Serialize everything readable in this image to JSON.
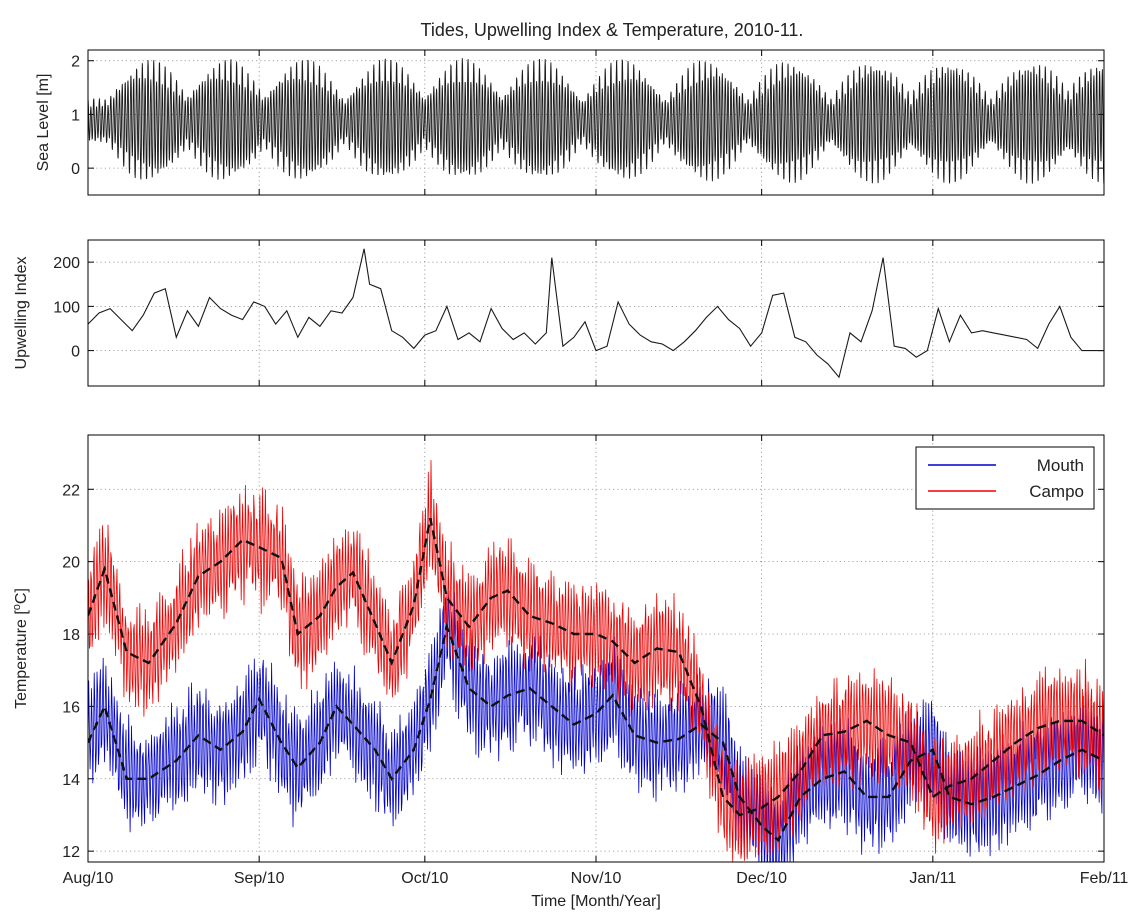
{
  "chart_data": [
    {
      "type": "line",
      "title": "Tides, Upwelling Index & Temperature, 2010-11.",
      "ylabel": "Sea Level [m]",
      "xlim": [
        "2010-08-01",
        "2011-02-01"
      ],
      "ylim": [
        -0.5,
        2.2
      ],
      "yticks": [
        0,
        1,
        2
      ],
      "grid": true,
      "series": [
        {
          "color": "#1a1a1a",
          "description": "hourly mixed semidiurnal tide, mean ~0.9 m, spring-neap envelope",
          "spring_tide_dates": [
            "2010-08-12",
            "2010-08-26",
            "2010-09-09",
            "2010-09-24",
            "2010-10-08",
            "2010-10-22",
            "2010-11-06",
            "2010-11-21",
            "2010-12-06",
            "2010-12-21",
            "2011-01-04",
            "2011-01-19",
            "2011-02-01"
          ],
          "spring_range": [
            -0.3,
            2.05
          ],
          "neap_range": [
            0.5,
            1.35
          ]
        }
      ]
    },
    {
      "type": "line",
      "ylabel": "Upwelling Index",
      "xlim": [
        "2010-08-01",
        "2011-02-01"
      ],
      "ylim": [
        -80,
        250
      ],
      "yticks": [
        0,
        100,
        200
      ],
      "grid": true,
      "series": [
        {
          "color": "#1a1a1a",
          "x": [
            "2010-08-01",
            "2010-08-03",
            "2010-08-05",
            "2010-08-07",
            "2010-08-09",
            "2010-08-11",
            "2010-08-13",
            "2010-08-15",
            "2010-08-17",
            "2010-08-19",
            "2010-08-21",
            "2010-08-23",
            "2010-08-25",
            "2010-08-27",
            "2010-08-29",
            "2010-08-31",
            "2010-09-02",
            "2010-09-04",
            "2010-09-06",
            "2010-09-08",
            "2010-09-10",
            "2010-09-12",
            "2010-09-14",
            "2010-09-16",
            "2010-09-18",
            "2010-09-20",
            "2010-09-21",
            "2010-09-23",
            "2010-09-25",
            "2010-09-27",
            "2010-09-29",
            "2010-10-01",
            "2010-10-03",
            "2010-10-05",
            "2010-10-07",
            "2010-10-09",
            "2010-10-11",
            "2010-10-13",
            "2010-10-15",
            "2010-10-17",
            "2010-10-19",
            "2010-10-21",
            "2010-10-23",
            "2010-10-24",
            "2010-10-26",
            "2010-10-28",
            "2010-10-30",
            "2010-11-01",
            "2010-11-03",
            "2010-11-05",
            "2010-11-07",
            "2010-11-09",
            "2010-11-11",
            "2010-11-13",
            "2010-11-15",
            "2010-11-17",
            "2010-11-19",
            "2010-11-21",
            "2010-11-23",
            "2010-11-25",
            "2010-11-27",
            "2010-11-29",
            "2010-12-01",
            "2010-12-03",
            "2010-12-05",
            "2010-12-07",
            "2010-12-09",
            "2010-12-11",
            "2010-12-13",
            "2010-12-15",
            "2010-12-17",
            "2010-12-19",
            "2010-12-21",
            "2010-12-23",
            "2010-12-25",
            "2010-12-27",
            "2010-12-29",
            "2010-12-31",
            "2011-01-02",
            "2011-01-04",
            "2011-01-06",
            "2011-01-08",
            "2011-01-10",
            "2011-01-12",
            "2011-01-14",
            "2011-01-16",
            "2011-01-18",
            "2011-01-20",
            "2011-01-22",
            "2011-01-24",
            "2011-01-26",
            "2011-01-28",
            "2011-01-30",
            "2011-02-01"
          ],
          "values": [
            60,
            85,
            95,
            70,
            45,
            80,
            130,
            140,
            30,
            90,
            55,
            120,
            95,
            80,
            70,
            110,
            100,
            60,
            90,
            30,
            75,
            55,
            90,
            85,
            120,
            230,
            150,
            140,
            45,
            30,
            5,
            35,
            45,
            100,
            25,
            40,
            20,
            95,
            50,
            25,
            40,
            15,
            40,
            210,
            10,
            30,
            65,
            0,
            10,
            110,
            60,
            35,
            20,
            15,
            0,
            20,
            45,
            75,
            100,
            70,
            50,
            10,
            40,
            125,
            130,
            30,
            20,
            -10,
            -30,
            -60,
            40,
            20,
            90,
            210,
            10,
            5,
            -15,
            0,
            95,
            20,
            80,
            40,
            45,
            40,
            35,
            30,
            25,
            5,
            60,
            100,
            30,
            0,
            0,
            0
          ],
          "peaks": [
            {
              "x": "2010-09-20",
              "y": 230
            },
            {
              "x": "2010-10-24",
              "y": 210
            },
            {
              "x": "2010-12-23",
              "y": 210
            }
          ]
        }
      ]
    },
    {
      "type": "line",
      "xlabel": "Time [Month/Year]",
      "ylabel": "Temperature [oC]",
      "xlim": [
        "2010-08-01",
        "2011-02-01"
      ],
      "ylim": [
        11.7,
        23.5
      ],
      "yticks": [
        12,
        14,
        16,
        18,
        20,
        22
      ],
      "xticks": [
        "Aug/10",
        "Sep/10",
        "Oct/10",
        "Nov/10",
        "Dec/10",
        "Jan/11",
        "Feb/11"
      ],
      "grid": true,
      "legend": "top-right",
      "series": [
        {
          "name": "Mouth",
          "color": "#0000cc",
          "smoothed_color": "#111111",
          "x": [
            "2010-08-01",
            "2010-08-04",
            "2010-08-08",
            "2010-08-12",
            "2010-08-17",
            "2010-08-21",
            "2010-08-25",
            "2010-08-29",
            "2010-09-01",
            "2010-09-05",
            "2010-09-08",
            "2010-09-12",
            "2010-09-15",
            "2010-09-18",
            "2010-09-22",
            "2010-09-25",
            "2010-09-29",
            "2010-10-02",
            "2010-10-05",
            "2010-10-09",
            "2010-10-13",
            "2010-10-16",
            "2010-10-20",
            "2010-10-24",
            "2010-10-28",
            "2010-11-01",
            "2010-11-04",
            "2010-11-08",
            "2010-11-12",
            "2010-11-16",
            "2010-11-20",
            "2010-11-24",
            "2010-11-27",
            "2010-12-01",
            "2010-12-04",
            "2010-12-08",
            "2010-12-12",
            "2010-12-16",
            "2010-12-20",
            "2010-12-24",
            "2010-12-28",
            "2011-01-01",
            "2011-01-04",
            "2011-01-08",
            "2011-01-12",
            "2011-01-16",
            "2011-01-20",
            "2011-01-24",
            "2011-01-28",
            "2011-02-01"
          ],
          "values": [
            15.0,
            16.0,
            14.0,
            14.0,
            14.5,
            15.2,
            14.8,
            15.3,
            16.2,
            15.0,
            14.3,
            15.0,
            16.0,
            15.5,
            14.8,
            14.0,
            14.8,
            16.2,
            18.2,
            16.5,
            16.0,
            16.3,
            16.5,
            16.0,
            15.5,
            15.8,
            16.3,
            15.2,
            15.0,
            15.1,
            15.5,
            15.0,
            13.5,
            12.7,
            12.3,
            13.5,
            14.0,
            14.2,
            13.5,
            13.5,
            14.5,
            14.8,
            13.5,
            13.3,
            13.5,
            13.8,
            14.1,
            14.5,
            14.8,
            14.5
          ],
          "raw_range_note": "hourly data oscillates approx +/-1.5 degC about the smoothed line, min ~11.9"
        },
        {
          "name": "Campo",
          "color": "#ee0000",
          "smoothed_color": "#111111",
          "x": [
            "2010-08-01",
            "2010-08-04",
            "2010-08-08",
            "2010-08-12",
            "2010-08-17",
            "2010-08-21",
            "2010-08-25",
            "2010-08-29",
            "2010-09-01",
            "2010-09-05",
            "2010-09-08",
            "2010-09-12",
            "2010-09-15",
            "2010-09-18",
            "2010-09-22",
            "2010-09-25",
            "2010-09-29",
            "2010-10-02",
            "2010-10-05",
            "2010-10-09",
            "2010-10-13",
            "2010-10-16",
            "2010-10-20",
            "2010-10-24",
            "2010-10-28",
            "2010-11-01",
            "2010-11-04",
            "2010-11-08",
            "2010-11-12",
            "2010-11-16",
            "2010-11-20",
            "2010-11-24",
            "2010-11-27",
            "2010-12-01",
            "2010-12-04",
            "2010-12-08",
            "2010-12-12",
            "2010-12-16",
            "2010-12-20",
            "2010-12-24",
            "2010-12-28",
            "2011-01-01",
            "2011-01-04",
            "2011-01-08",
            "2011-01-12",
            "2011-01-16",
            "2011-01-20",
            "2011-01-24",
            "2011-01-28",
            "2011-02-01"
          ],
          "values": [
            18.5,
            19.8,
            17.5,
            17.2,
            18.3,
            19.6,
            20.0,
            20.6,
            20.4,
            20.1,
            18.0,
            18.5,
            19.3,
            19.7,
            18.3,
            17.2,
            18.8,
            21.2,
            19.0,
            18.2,
            19.0,
            19.2,
            18.5,
            18.3,
            18.0,
            18.0,
            17.8,
            17.2,
            17.6,
            17.5,
            16.0,
            13.5,
            13.0,
            13.2,
            13.5,
            14.2,
            15.2,
            15.3,
            15.6,
            15.2,
            15.0,
            13.5,
            13.8,
            14.0,
            14.5,
            15.0,
            15.4,
            15.6,
            15.6,
            15.2
          ],
          "raw_range_note": "hourly data oscillates approx +/-1.5 degC about the smoothed line, max ~22.2"
        }
      ]
    }
  ]
}
